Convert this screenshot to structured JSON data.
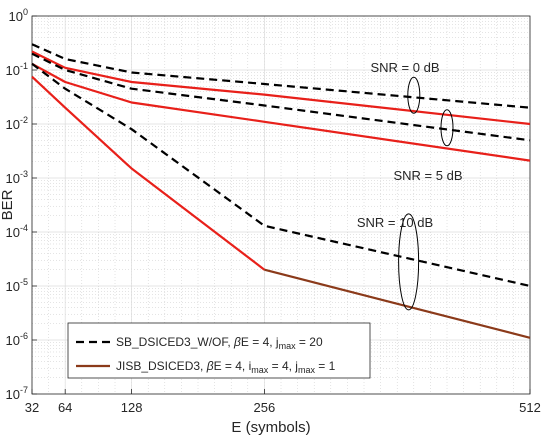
{
  "chart_data": {
    "type": "line",
    "xlabel": "E (symbols)",
    "ylabel": "BER",
    "x_scale": "linear",
    "y_scale": "log",
    "xlim": [
      32,
      512
    ],
    "ylim": [
      1e-07,
      1
    ],
    "x_ticks": [
      32,
      64,
      128,
      256,
      512
    ],
    "y_ticks": [
      {
        "exp": 0,
        "value": 1
      },
      {
        "exp": -1,
        "value": 0.1
      },
      {
        "exp": -2,
        "value": 0.01
      },
      {
        "exp": -3,
        "value": 0.001
      },
      {
        "exp": -4,
        "value": 0.0001
      },
      {
        "exp": -5,
        "value": 1e-05
      },
      {
        "exp": -6,
        "value": 1e-06
      },
      {
        "exp": -7,
        "value": 1e-07
      }
    ],
    "grid": true,
    "legend_position": "bottom-left",
    "legend": [
      {
        "text_main": "SB_DSICED3_W/OF, ",
        "beta": "β",
        "text_rest": "E = 4, j",
        "sub1": "max",
        "text_after": " = 20",
        "sub2": "",
        "text_end": "",
        "style": "dashed",
        "color": "#000000"
      },
      {
        "text_main": "JISB_DSICED3, ",
        "beta": "β",
        "text_rest": "E = 4, i",
        "sub1": "max",
        "text_after": " = 4, j",
        "sub2": "max",
        "text_end": " = 1",
        "style": "solid",
        "color": "#8b3a1a"
      }
    ],
    "series": [
      {
        "group": "SNR = 0 dB",
        "style": "dashed",
        "color": "#000000",
        "x": [
          32,
          64,
          128,
          256,
          512
        ],
        "y": [
          0.3,
          0.16,
          0.09,
          0.055,
          0.02
        ]
      },
      {
        "group": "SNR = 0 dB",
        "style": "solid",
        "color": "#e8201a",
        "x": [
          32,
          64,
          128,
          256,
          512
        ],
        "y": [
          0.22,
          0.11,
          0.06,
          0.035,
          0.01
        ]
      },
      {
        "group": "SNR = 5 dB",
        "style": "dashed",
        "color": "#000000",
        "x": [
          32,
          64,
          128,
          256,
          512
        ],
        "y": [
          0.2,
          0.1,
          0.045,
          0.022,
          0.005
        ]
      },
      {
        "group": "SNR = 5 dB",
        "style": "solid",
        "color": "#e8201a",
        "x": [
          32,
          64,
          128,
          256,
          512
        ],
        "y": [
          0.13,
          0.06,
          0.025,
          0.011,
          0.0021
        ]
      },
      {
        "group": "SNR = 10 dB",
        "style": "dashed",
        "color": "#000000",
        "x": [
          32,
          64,
          128,
          256,
          512
        ],
        "y": [
          0.13,
          0.045,
          0.008,
          0.00013,
          1e-05
        ]
      },
      {
        "group": "SNR = 10 dB",
        "style": "solid",
        "color": "#e8201a",
        "x": [
          32,
          64,
          128,
          256
        ],
        "y": [
          0.075,
          0.02,
          0.0015,
          2e-05
        ]
      },
      {
        "group": "SNR = 10 dB",
        "style": "solid",
        "color": "#8b3a1a",
        "x": [
          256,
          512
        ],
        "y": [
          2e-05,
          1.1e-06
        ]
      }
    ],
    "annotations": [
      {
        "text": "SNR = 0 dB"
      },
      {
        "text": "SNR = 5 dB"
      },
      {
        "text": "SNR = 10 dB"
      }
    ]
  }
}
